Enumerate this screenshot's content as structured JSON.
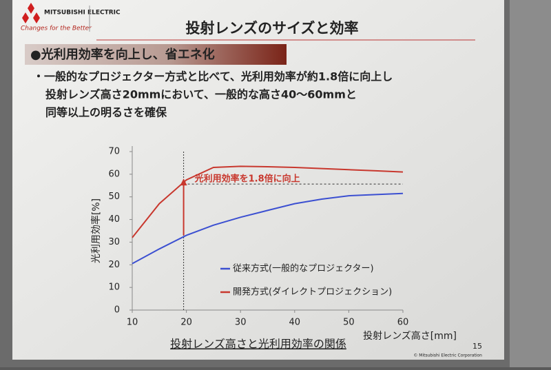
{
  "slide": {
    "logo_name": "MITSUBISHI ELECTRIC",
    "logo_slogan": "Changes for the Better",
    "title": "投射レンズのサイズと効率",
    "section": "●光利用効率を向上し、省エネ化",
    "bullets": [
      "・一般的なプロジェクター方式と比べて、光利用効率が約1.8倍に向上し",
      "投射レンズ高さ20mmにおいて、一般的な高さ40～60mmと",
      "同等以上の明るさを確保"
    ],
    "page_number": "15",
    "copyright": "© Mitsubishi Electric Corporation"
  },
  "chart_data": {
    "type": "line",
    "title": "投射レンズ高さと光利用効率の関係",
    "x_label": "投射レンズ高さ[mm]",
    "y_label": "光利用効率[%]",
    "annotation": "光利用効率を1.8倍に向上",
    "x": [
      10,
      15,
      20,
      25,
      30,
      35,
      40,
      45,
      50,
      55,
      60
    ],
    "series": [
      {
        "name": "従来方式(一般的なプロジェクター)",
        "color": "#3b4fd1",
        "values": [
          20.5,
          27,
          33,
          37.5,
          41,
          44,
          47,
          49,
          50.5,
          51,
          51.5
        ]
      },
      {
        "name": "開発方式(ダイレクトプロジェクション)",
        "color": "#c8372d",
        "values": [
          32,
          47,
          57.5,
          63,
          63.5,
          63.3,
          63,
          62.5,
          62,
          61.5,
          61
        ]
      }
    ],
    "xlim": [
      10,
      60
    ],
    "ylim": [
      0,
      70
    ],
    "xticks": [
      10,
      20,
      30,
      40,
      50,
      60
    ],
    "yticks": [
      0,
      10,
      20,
      30,
      40,
      50,
      60,
      70
    ],
    "grid": false
  }
}
